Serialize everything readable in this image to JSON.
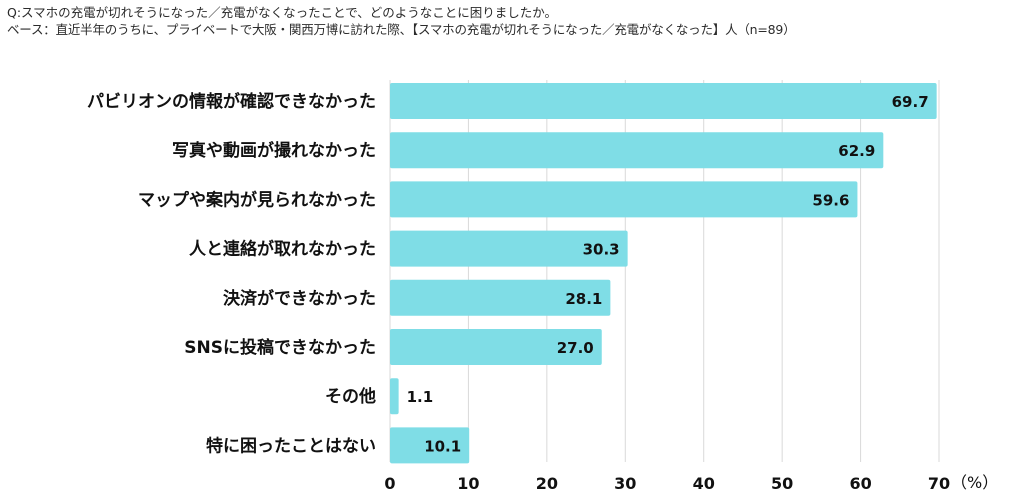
{
  "question": "Q:スマホの充電が切れそうになった／充電がなくなったことで、どのようなことに困りましたか。",
  "base": "ベース：直近半年のうちに、プライベートで大阪・関西万博に訪れた際、【スマホの充電が切れそうになった／充電がなくなった】人（n=89）",
  "chart_data": {
    "type": "bar",
    "orientation": "horizontal",
    "categories": [
      "パビリオンの情報が確認できなかった",
      "写真や動画が撮れなかった",
      "マップや案内が見られなかった",
      "人と連絡が取れなかった",
      "決済ができなかった",
      "SNSに投稿できなかった",
      "その他",
      "特に困ったことはない"
    ],
    "values": [
      69.7,
      62.9,
      59.6,
      30.3,
      28.1,
      27.0,
      1.1,
      10.1
    ],
    "value_labels": [
      "69.7",
      "62.9",
      "59.6",
      "30.3",
      "28.1",
      "27.0",
      "1.1",
      "10.1"
    ],
    "xlim": [
      0,
      70
    ],
    "ticks": [
      0,
      10,
      20,
      30,
      40,
      50,
      60,
      70
    ],
    "tick_labels": [
      "0",
      "10",
      "20",
      "30",
      "40",
      "50",
      "60",
      "70"
    ],
    "unit": "（%）",
    "grid": true,
    "bar_color": "#7fdde6",
    "grid_color": "#d9d9d9"
  }
}
